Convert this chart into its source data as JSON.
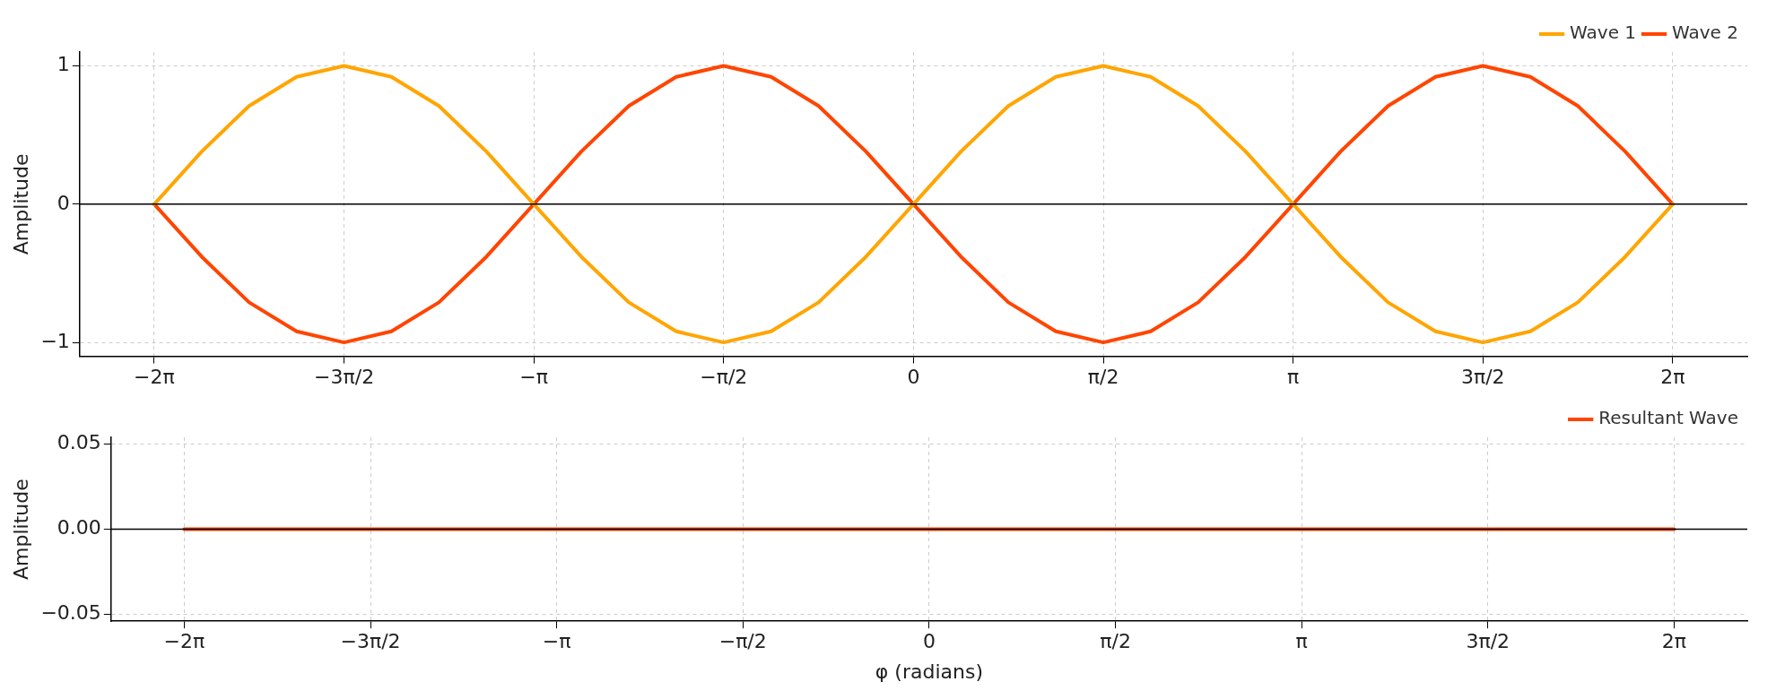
{
  "chart_data": [
    {
      "type": "line",
      "ylabel": "Amplitude",
      "x": [
        -6.283,
        -5.89,
        -5.498,
        -5.105,
        -4.712,
        -4.32,
        -3.927,
        -3.534,
        -3.142,
        -2.749,
        -2.356,
        -1.963,
        -1.571,
        -1.178,
        -0.785,
        -0.393,
        0,
        0.393,
        0.785,
        1.178,
        1.571,
        1.963,
        2.356,
        2.749,
        3.142,
        3.534,
        3.927,
        4.32,
        4.712,
        5.105,
        5.498,
        5.89,
        6.283
      ],
      "series": [
        {
          "name": "Wave 1",
          "color": "#ffa500",
          "values": [
            0,
            0.38,
            0.71,
            0.92,
            1,
            0.92,
            0.71,
            0.38,
            0,
            -0.38,
            -0.71,
            -0.92,
            -1,
            -0.92,
            -0.71,
            -0.38,
            0,
            0.38,
            0.71,
            0.92,
            1,
            0.92,
            0.71,
            0.38,
            0,
            -0.38,
            -0.71,
            -0.92,
            -1,
            -0.92,
            -0.71,
            -0.38,
            0
          ]
        },
        {
          "name": "Wave 2",
          "color": "#ff4500",
          "values": [
            0,
            -0.38,
            -0.71,
            -0.92,
            -1,
            -0.92,
            -0.71,
            -0.38,
            0,
            0.38,
            0.71,
            0.92,
            1,
            0.92,
            0.71,
            0.38,
            0,
            -0.38,
            -0.71,
            -0.92,
            -1,
            -0.92,
            -0.71,
            -0.38,
            0,
            0.38,
            0.71,
            0.92,
            1,
            0.92,
            0.71,
            0.38,
            0
          ]
        }
      ],
      "xlim": [
        -6.9,
        6.9
      ],
      "xticks": [
        {
          "value": -6.283,
          "label": "−2π"
        },
        {
          "value": -4.712,
          "label": "−3π/2"
        },
        {
          "value": -3.142,
          "label": "−π"
        },
        {
          "value": -1.571,
          "label": "−π/2"
        },
        0,
        {
          "value": 1.571,
          "label": "π/2"
        },
        {
          "value": 3.142,
          "label": "π"
        },
        {
          "value": 4.712,
          "label": "3π/2"
        },
        {
          "value": 6.283,
          "label": "2π"
        }
      ],
      "ylim": [
        -1.1,
        1.1
      ],
      "yticks": [
        {
          "value": -1,
          "label": "−1"
        },
        0,
        1
      ],
      "ref_lines": [
        {
          "axis": "y",
          "value": 0,
          "color": "#000000"
        }
      ],
      "grid": true,
      "legend": "top right",
      "marker": "none",
      "line_style": "solid"
    },
    {
      "type": "line",
      "xlabel": "φ (radians)",
      "ylabel": "Amplitude",
      "x": [
        -6.283,
        6.283
      ],
      "series": [
        {
          "name": "Resultant Wave",
          "color": "#ff4500",
          "values": [
            0,
            0
          ]
        }
      ],
      "xlim": [
        -6.9,
        6.9
      ],
      "xticks": [
        {
          "value": -6.283,
          "label": "−2π"
        },
        {
          "value": -4.712,
          "label": "−3π/2"
        },
        {
          "value": -3.142,
          "label": "−π"
        },
        {
          "value": -1.571,
          "label": "−π/2"
        },
        0,
        {
          "value": 1.571,
          "label": "π/2"
        },
        {
          "value": 3.142,
          "label": "π"
        },
        {
          "value": 4.712,
          "label": "3π/2"
        },
        {
          "value": 6.283,
          "label": "2π"
        }
      ],
      "ylim": [
        -0.054,
        0.054
      ],
      "yticks": [
        {
          "value": -0.05,
          "label": "−0.05"
        },
        {
          "value": 0,
          "label": "0.00"
        },
        {
          "value": 0.05,
          "label": "0.05"
        }
      ],
      "ref_lines": [
        {
          "axis": "y",
          "value": 0,
          "color": "#000000"
        }
      ],
      "grid": true,
      "legend": "top right",
      "marker": "none",
      "line_style": "solid"
    }
  ]
}
